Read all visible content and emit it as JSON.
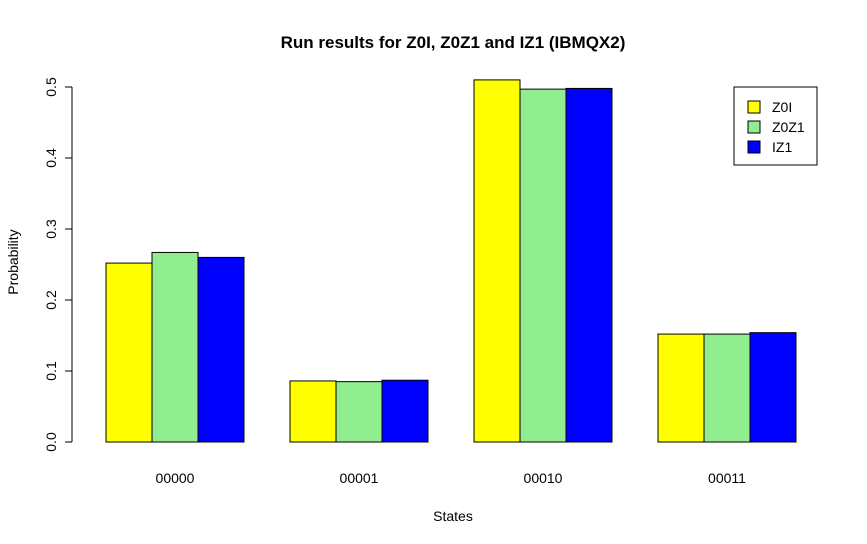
{
  "chart_data": {
    "type": "bar",
    "title": "Run results for Z0I, Z0Z1 and IZ1 (IBMQX2)",
    "xlabel": "States",
    "ylabel": "Probability",
    "categories": [
      "00000",
      "00001",
      "00010",
      "00011"
    ],
    "series": [
      {
        "name": "Z0I",
        "color": "#ffff00",
        "values": [
          0.252,
          0.086,
          0.51,
          0.152
        ]
      },
      {
        "name": "Z0Z1",
        "color": "#90ee90",
        "values": [
          0.267,
          0.085,
          0.497,
          0.152
        ]
      },
      {
        "name": "IZ1",
        "color": "#0000ff",
        "values": [
          0.26,
          0.087,
          0.498,
          0.154
        ]
      }
    ],
    "ylim": [
      0,
      0.5
    ],
    "yticks": [
      "0.0",
      "0.1",
      "0.2",
      "0.3",
      "0.4",
      "0.5"
    ],
    "grid": false,
    "legend_position": "top-right"
  }
}
